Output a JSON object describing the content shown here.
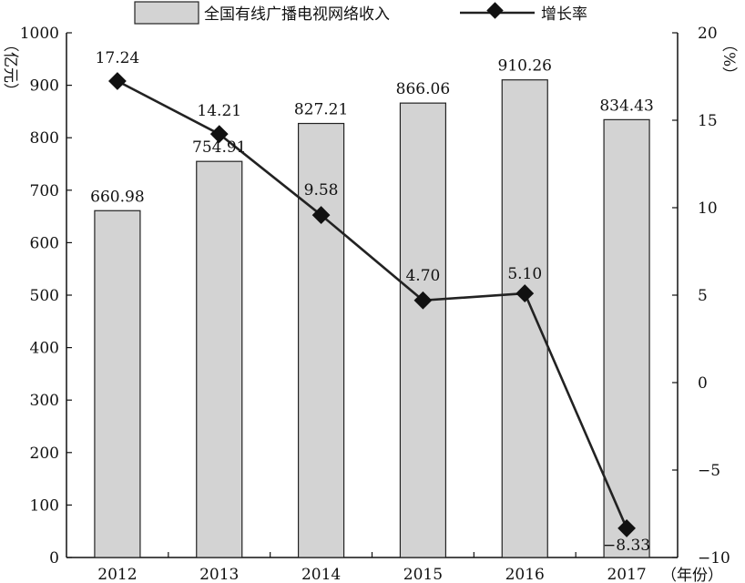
{
  "chart_data": {
    "type": "bar+line",
    "categories": [
      "2012",
      "2013",
      "2014",
      "2015",
      "2016",
      "2017"
    ],
    "series": [
      {
        "name": "全国有线广播电视网络收入",
        "type": "bar",
        "axis": "left",
        "values": [
          660.98,
          754.91,
          827.21,
          866.06,
          910.26,
          834.43
        ],
        "labels": [
          "660.98",
          "754.91",
          "827.21",
          "866.06",
          "910.26",
          "834.43"
        ]
      },
      {
        "name": "增长率",
        "type": "line",
        "axis": "right",
        "values": [
          17.24,
          14.21,
          9.58,
          4.7,
          5.1,
          -8.33
        ],
        "labels": [
          "17.24",
          "14.21",
          "9.58",
          "4.70",
          "5.10",
          "−8.33"
        ]
      }
    ],
    "y_left": {
      "label": "（亿元）",
      "range": [
        0,
        1000
      ],
      "ticks": [
        "0",
        "100",
        "200",
        "300",
        "400",
        "500",
        "600",
        "700",
        "800",
        "900",
        "1000"
      ]
    },
    "y_right": {
      "label": "（%）",
      "range": [
        -10,
        20
      ],
      "ticks": [
        "−10",
        "−5",
        "0",
        "5",
        "10",
        "15",
        "20"
      ]
    },
    "x_label": "（年份）",
    "legend": "top",
    "grid": false,
    "colors": {
      "bar_fill": "#d3d3d3",
      "bar_stroke": "#222222",
      "line": "#222222",
      "marker": "#111111"
    }
  }
}
